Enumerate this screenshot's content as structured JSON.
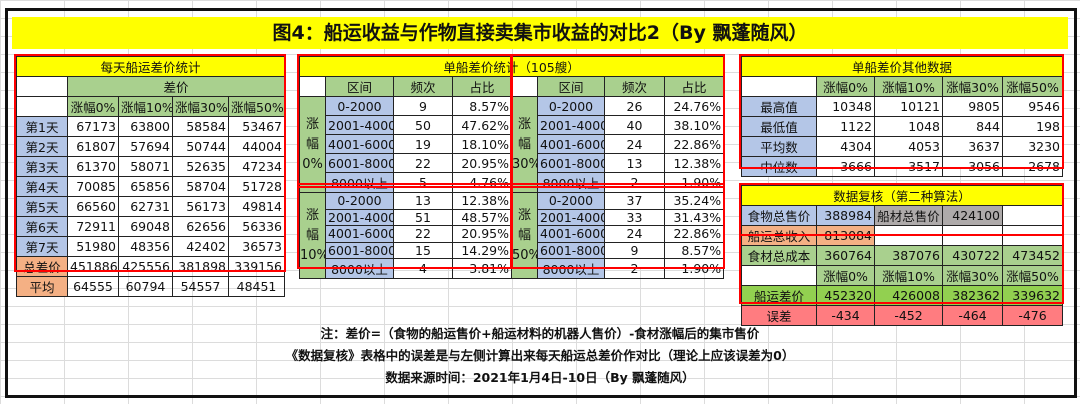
{
  "title": "图4：船运收益与作物直接卖集市收益的对比2（By 飘蓬随风）",
  "daily": {
    "title": "每天船运差价统计",
    "header": "差价",
    "columns": [
      "涨幅0%",
      "涨幅10%",
      "涨幅30%",
      "涨幅50%"
    ],
    "rows": [
      {
        "label": "第1天",
        "values": [
          "67173",
          "63800",
          "58584",
          "53467"
        ]
      },
      {
        "label": "第2天",
        "values": [
          "61807",
          "57694",
          "50744",
          "44004"
        ]
      },
      {
        "label": "第3天",
        "values": [
          "61370",
          "58071",
          "52635",
          "47234"
        ]
      },
      {
        "label": "第4天",
        "values": [
          "70085",
          "65856",
          "58704",
          "51728"
        ]
      },
      {
        "label": "第5天",
        "values": [
          "66560",
          "62731",
          "56173",
          "49814"
        ]
      },
      {
        "label": "第6天",
        "values": [
          "72911",
          "69048",
          "62656",
          "56336"
        ]
      },
      {
        "label": "第7天",
        "values": [
          "51980",
          "48356",
          "42402",
          "36573"
        ]
      }
    ],
    "total": {
      "label": "总差价",
      "values": [
        "451886",
        "425556",
        "381898",
        "339156"
      ]
    },
    "average": {
      "label": "平均",
      "values": [
        "64555",
        "60794",
        "54557",
        "48451"
      ]
    }
  },
  "single": {
    "title": "单船差价统计（105艘）",
    "headers": [
      "区间",
      "频次",
      "占比"
    ],
    "groups": [
      {
        "label": "涨幅0%",
        "rows": [
          {
            "range": "0-2000",
            "count": "9",
            "pct": "8.57%"
          },
          {
            "range": "2001-4000",
            "count": "50",
            "pct": "47.62%"
          },
          {
            "range": "4001-6000",
            "count": "19",
            "pct": "18.10%"
          },
          {
            "range": "6001-8000",
            "count": "22",
            "pct": "20.95%"
          },
          {
            "range": "8000以上",
            "count": "5",
            "pct": "4.76%"
          }
        ]
      },
      {
        "label": "涨幅30%",
        "rows": [
          {
            "range": "0-2000",
            "count": "26",
            "pct": "24.76%"
          },
          {
            "range": "2001-4000",
            "count": "40",
            "pct": "38.10%"
          },
          {
            "range": "4001-6000",
            "count": "24",
            "pct": "22.86%"
          },
          {
            "range": "6001-8000",
            "count": "13",
            "pct": "12.38%"
          },
          {
            "range": "8000以上",
            "count": "2",
            "pct": "1.90%"
          }
        ]
      },
      {
        "label": "涨幅10%",
        "rows": [
          {
            "range": "0-2000",
            "count": "13",
            "pct": "12.38%"
          },
          {
            "range": "2001-4000",
            "count": "51",
            "pct": "48.57%"
          },
          {
            "range": "4001-6000",
            "count": "22",
            "pct": "20.95%"
          },
          {
            "range": "6001-8000",
            "count": "15",
            "pct": "14.29%"
          },
          {
            "range": "8000以上",
            "count": "4",
            "pct": "3.81%"
          }
        ]
      },
      {
        "label": "涨幅50%",
        "rows": [
          {
            "range": "0-2000",
            "count": "37",
            "pct": "35.24%"
          },
          {
            "range": "2001-4000",
            "count": "33",
            "pct": "31.43%"
          },
          {
            "range": "4001-6000",
            "count": "24",
            "pct": "22.86%"
          },
          {
            "range": "6001-8000",
            "count": "9",
            "pct": "8.57%"
          },
          {
            "range": "8000以上",
            "count": "2",
            "pct": "1.90%"
          }
        ]
      }
    ]
  },
  "other": {
    "title": "单船差价其他数据",
    "columns": [
      "涨幅0%",
      "涨幅10%",
      "涨幅30%",
      "涨幅50%"
    ],
    "rows": [
      {
        "label": "最高值",
        "values": [
          "10348",
          "10121",
          "9805",
          "9546"
        ]
      },
      {
        "label": "最低值",
        "values": [
          "1122",
          "1048",
          "844",
          "198"
        ]
      },
      {
        "label": "平均数",
        "values": [
          "4304",
          "4053",
          "3637",
          "3230"
        ]
      },
      {
        "label": "中位数",
        "values": [
          "3666",
          "3517",
          "3056",
          "2678"
        ]
      }
    ]
  },
  "recheck": {
    "title": "数据复核（第二种算法）",
    "food_total_label": "食物总售价",
    "food_total": "388984",
    "material_total_label": "船材总售价",
    "material_total": "424100",
    "revenue_label": "船运总收入",
    "revenue": "813084",
    "cost_label": "食材总成本",
    "costs": [
      "360764",
      "387076",
      "430722",
      "473452"
    ],
    "columns": [
      "涨幅0%",
      "涨幅10%",
      "涨幅30%",
      "涨幅50%"
    ],
    "diff_label": "船运差价",
    "diffs": [
      "452320",
      "426008",
      "382362",
      "339632"
    ],
    "error_label": "误差",
    "errors": [
      "-434",
      "-452",
      "-464",
      "-476"
    ]
  },
  "notes": [
    "注：差价=（食物的船运售价+船运材料的机器人售价）-食材涨幅后的集市售价",
    "《数据复核》表格中的误差是与左侧计算出来每天船运总差价作对比（理论上应该误差为0）",
    "数据来源时间：2021年1月4日-10日（By 飘蓬随风）"
  ]
}
